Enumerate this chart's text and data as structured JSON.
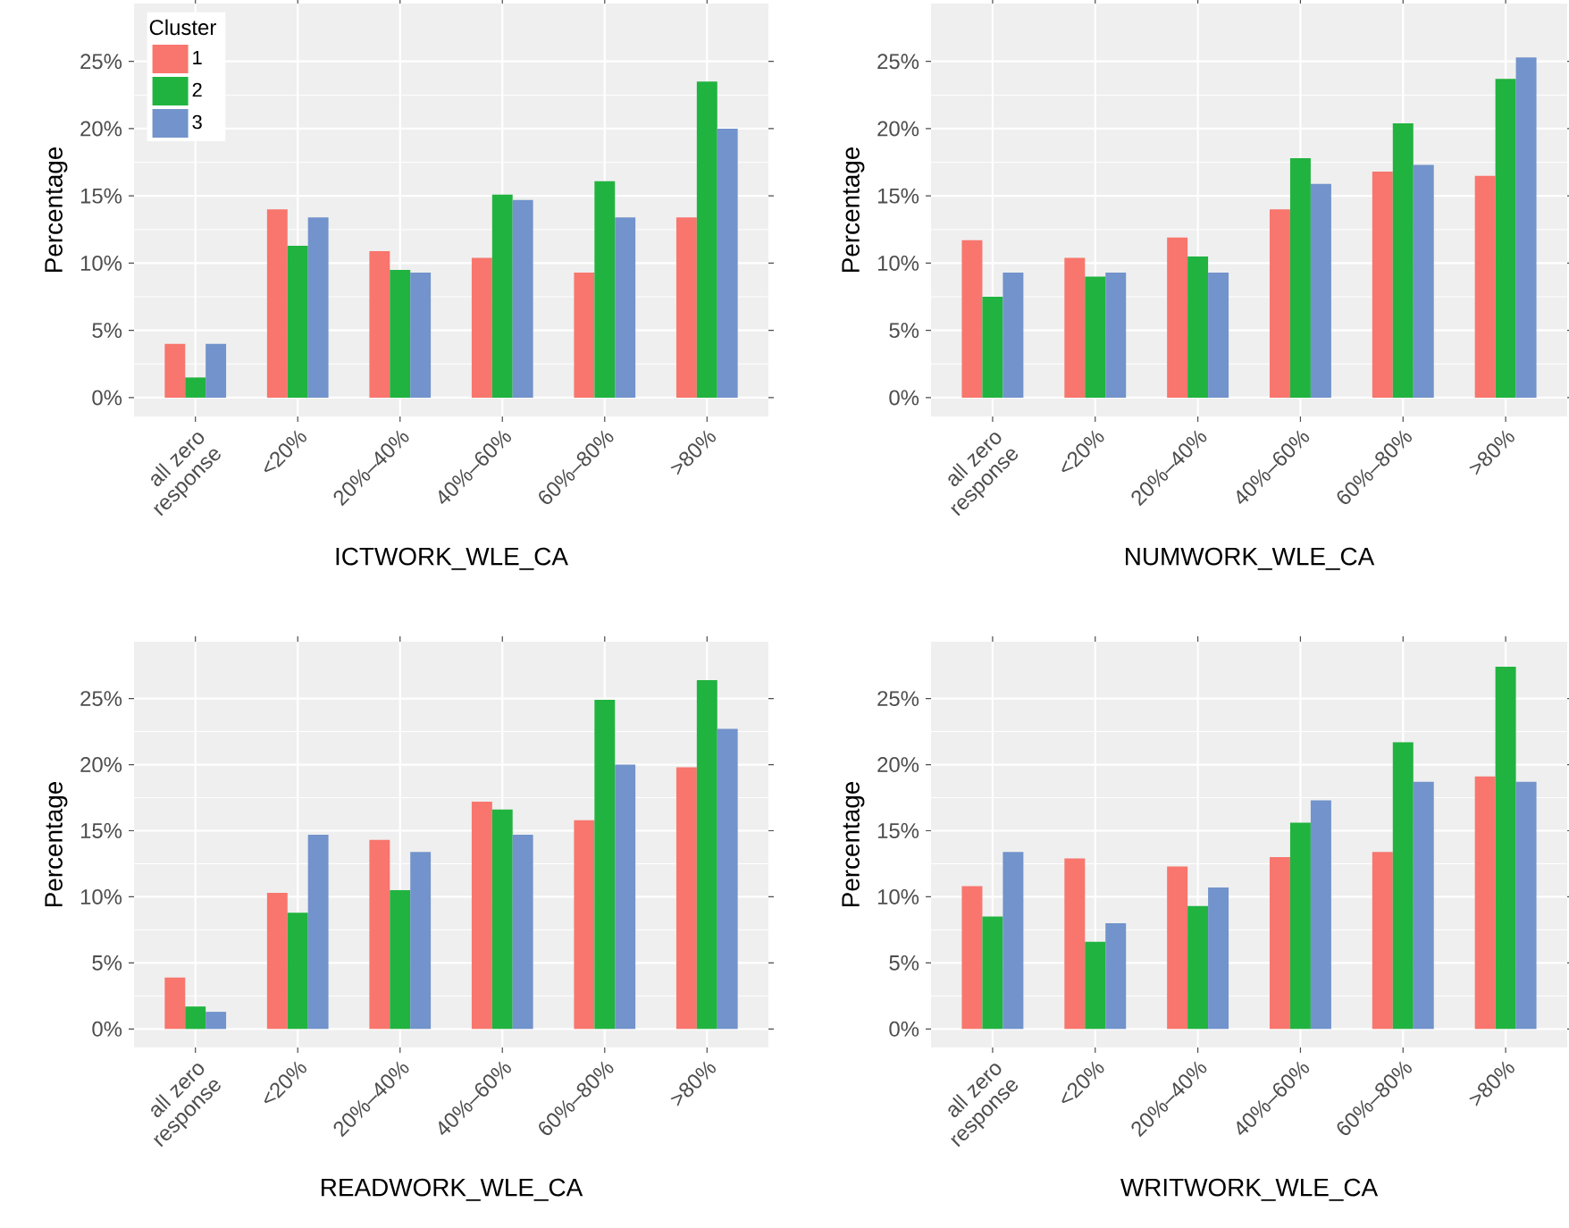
{
  "chart_data": [
    {
      "type": "bar",
      "xlabel": "ICTWORK_WLE_CA",
      "ylabel": "Percentage",
      "categories": [
        "all zero response",
        "<20%",
        "20%–40%",
        "40%–60%",
        "60%–80%",
        ">80%"
      ],
      "ylim": [
        -1.4,
        29.3
      ],
      "yticks": [
        {
          "value": 0,
          "label": "0%"
        },
        {
          "value": 5,
          "label": "5%"
        },
        {
          "value": 10,
          "label": "10%"
        },
        {
          "value": 15,
          "label": "15%"
        },
        {
          "value": 20,
          "label": "20%"
        },
        {
          "value": 25,
          "label": "25%"
        }
      ],
      "grid": true,
      "legend": "top left",
      "legend_title": "Cluster",
      "series": [
        {
          "name": "1",
          "color": "#f8766d",
          "values": [
            4.0,
            14.0,
            10.9,
            10.4,
            9.3,
            13.4
          ]
        },
        {
          "name": "2",
          "color": "#21b33f",
          "values": [
            1.5,
            11.3,
            9.5,
            15.1,
            16.1,
            23.5
          ]
        },
        {
          "name": "3",
          "color": "#7293cb",
          "values": [
            4.0,
            13.4,
            9.3,
            14.7,
            13.4,
            20.0
          ]
        }
      ]
    },
    {
      "type": "bar",
      "xlabel": "NUMWORK_WLE_CA",
      "ylabel": "Percentage",
      "categories": [
        "all zero response",
        "<20%",
        "20%–40%",
        "40%–60%",
        "60%–80%",
        ">80%"
      ],
      "ylim": [
        -1.4,
        29.3
      ],
      "yticks": [
        {
          "value": 0,
          "label": "0%"
        },
        {
          "value": 5,
          "label": "5%"
        },
        {
          "value": 10,
          "label": "10%"
        },
        {
          "value": 15,
          "label": "15%"
        },
        {
          "value": 20,
          "label": "20%"
        },
        {
          "value": 25,
          "label": "25%"
        }
      ],
      "grid": true,
      "series": [
        {
          "color": "#f8766d",
          "values": [
            11.7,
            10.4,
            11.9,
            14.0,
            16.8,
            16.5
          ]
        },
        {
          "color": "#21b33f",
          "values": [
            7.5,
            9.0,
            10.5,
            17.8,
            20.4,
            23.7
          ]
        },
        {
          "color": "#7293cb",
          "values": [
            9.3,
            9.3,
            9.3,
            15.9,
            17.3,
            25.3
          ]
        }
      ]
    },
    {
      "type": "bar",
      "xlabel": "READWORK_WLE_CA",
      "ylabel": "Percentage",
      "categories": [
        "all zero response",
        "<20%",
        "20%–40%",
        "40%–60%",
        "60%–80%",
        ">80%"
      ],
      "ylim": [
        -1.4,
        29.3
      ],
      "yticks": [
        {
          "value": 0,
          "label": "0%"
        },
        {
          "value": 5,
          "label": "5%"
        },
        {
          "value": 10,
          "label": "10%"
        },
        {
          "value": 15,
          "label": "15%"
        },
        {
          "value": 20,
          "label": "20%"
        },
        {
          "value": 25,
          "label": "25%"
        }
      ],
      "grid": true,
      "series": [
        {
          "color": "#f8766d",
          "values": [
            3.9,
            10.3,
            14.3,
            17.2,
            15.8,
            19.8
          ]
        },
        {
          "color": "#21b33f",
          "values": [
            1.7,
            8.8,
            10.5,
            16.6,
            24.9,
            26.4
          ]
        },
        {
          "color": "#7293cb",
          "values": [
            1.3,
            14.7,
            13.4,
            14.7,
            20.0,
            22.7
          ]
        }
      ]
    },
    {
      "type": "bar",
      "xlabel": "WRITWORK_WLE_CA",
      "ylabel": "Percentage",
      "categories": [
        "all zero response",
        "<20%",
        "20%–40%",
        "40%–60%",
        "60%–80%",
        ">80%"
      ],
      "ylim": [
        -1.4,
        29.3
      ],
      "yticks": [
        {
          "value": 0,
          "label": "0%"
        },
        {
          "value": 5,
          "label": "5%"
        },
        {
          "value": 10,
          "label": "10%"
        },
        {
          "value": 15,
          "label": "15%"
        },
        {
          "value": 20,
          "label": "20%"
        },
        {
          "value": 25,
          "label": "25%"
        }
      ],
      "grid": true,
      "series": [
        {
          "color": "#f8766d",
          "values": [
            10.8,
            12.9,
            12.3,
            13.0,
            13.4,
            19.1
          ]
        },
        {
          "color": "#21b33f",
          "values": [
            8.5,
            6.6,
            9.3,
            15.6,
            21.7,
            27.4
          ]
        },
        {
          "color": "#7293cb",
          "values": [
            13.4,
            8.0,
            10.7,
            17.3,
            18.7,
            18.7
          ]
        }
      ]
    }
  ]
}
